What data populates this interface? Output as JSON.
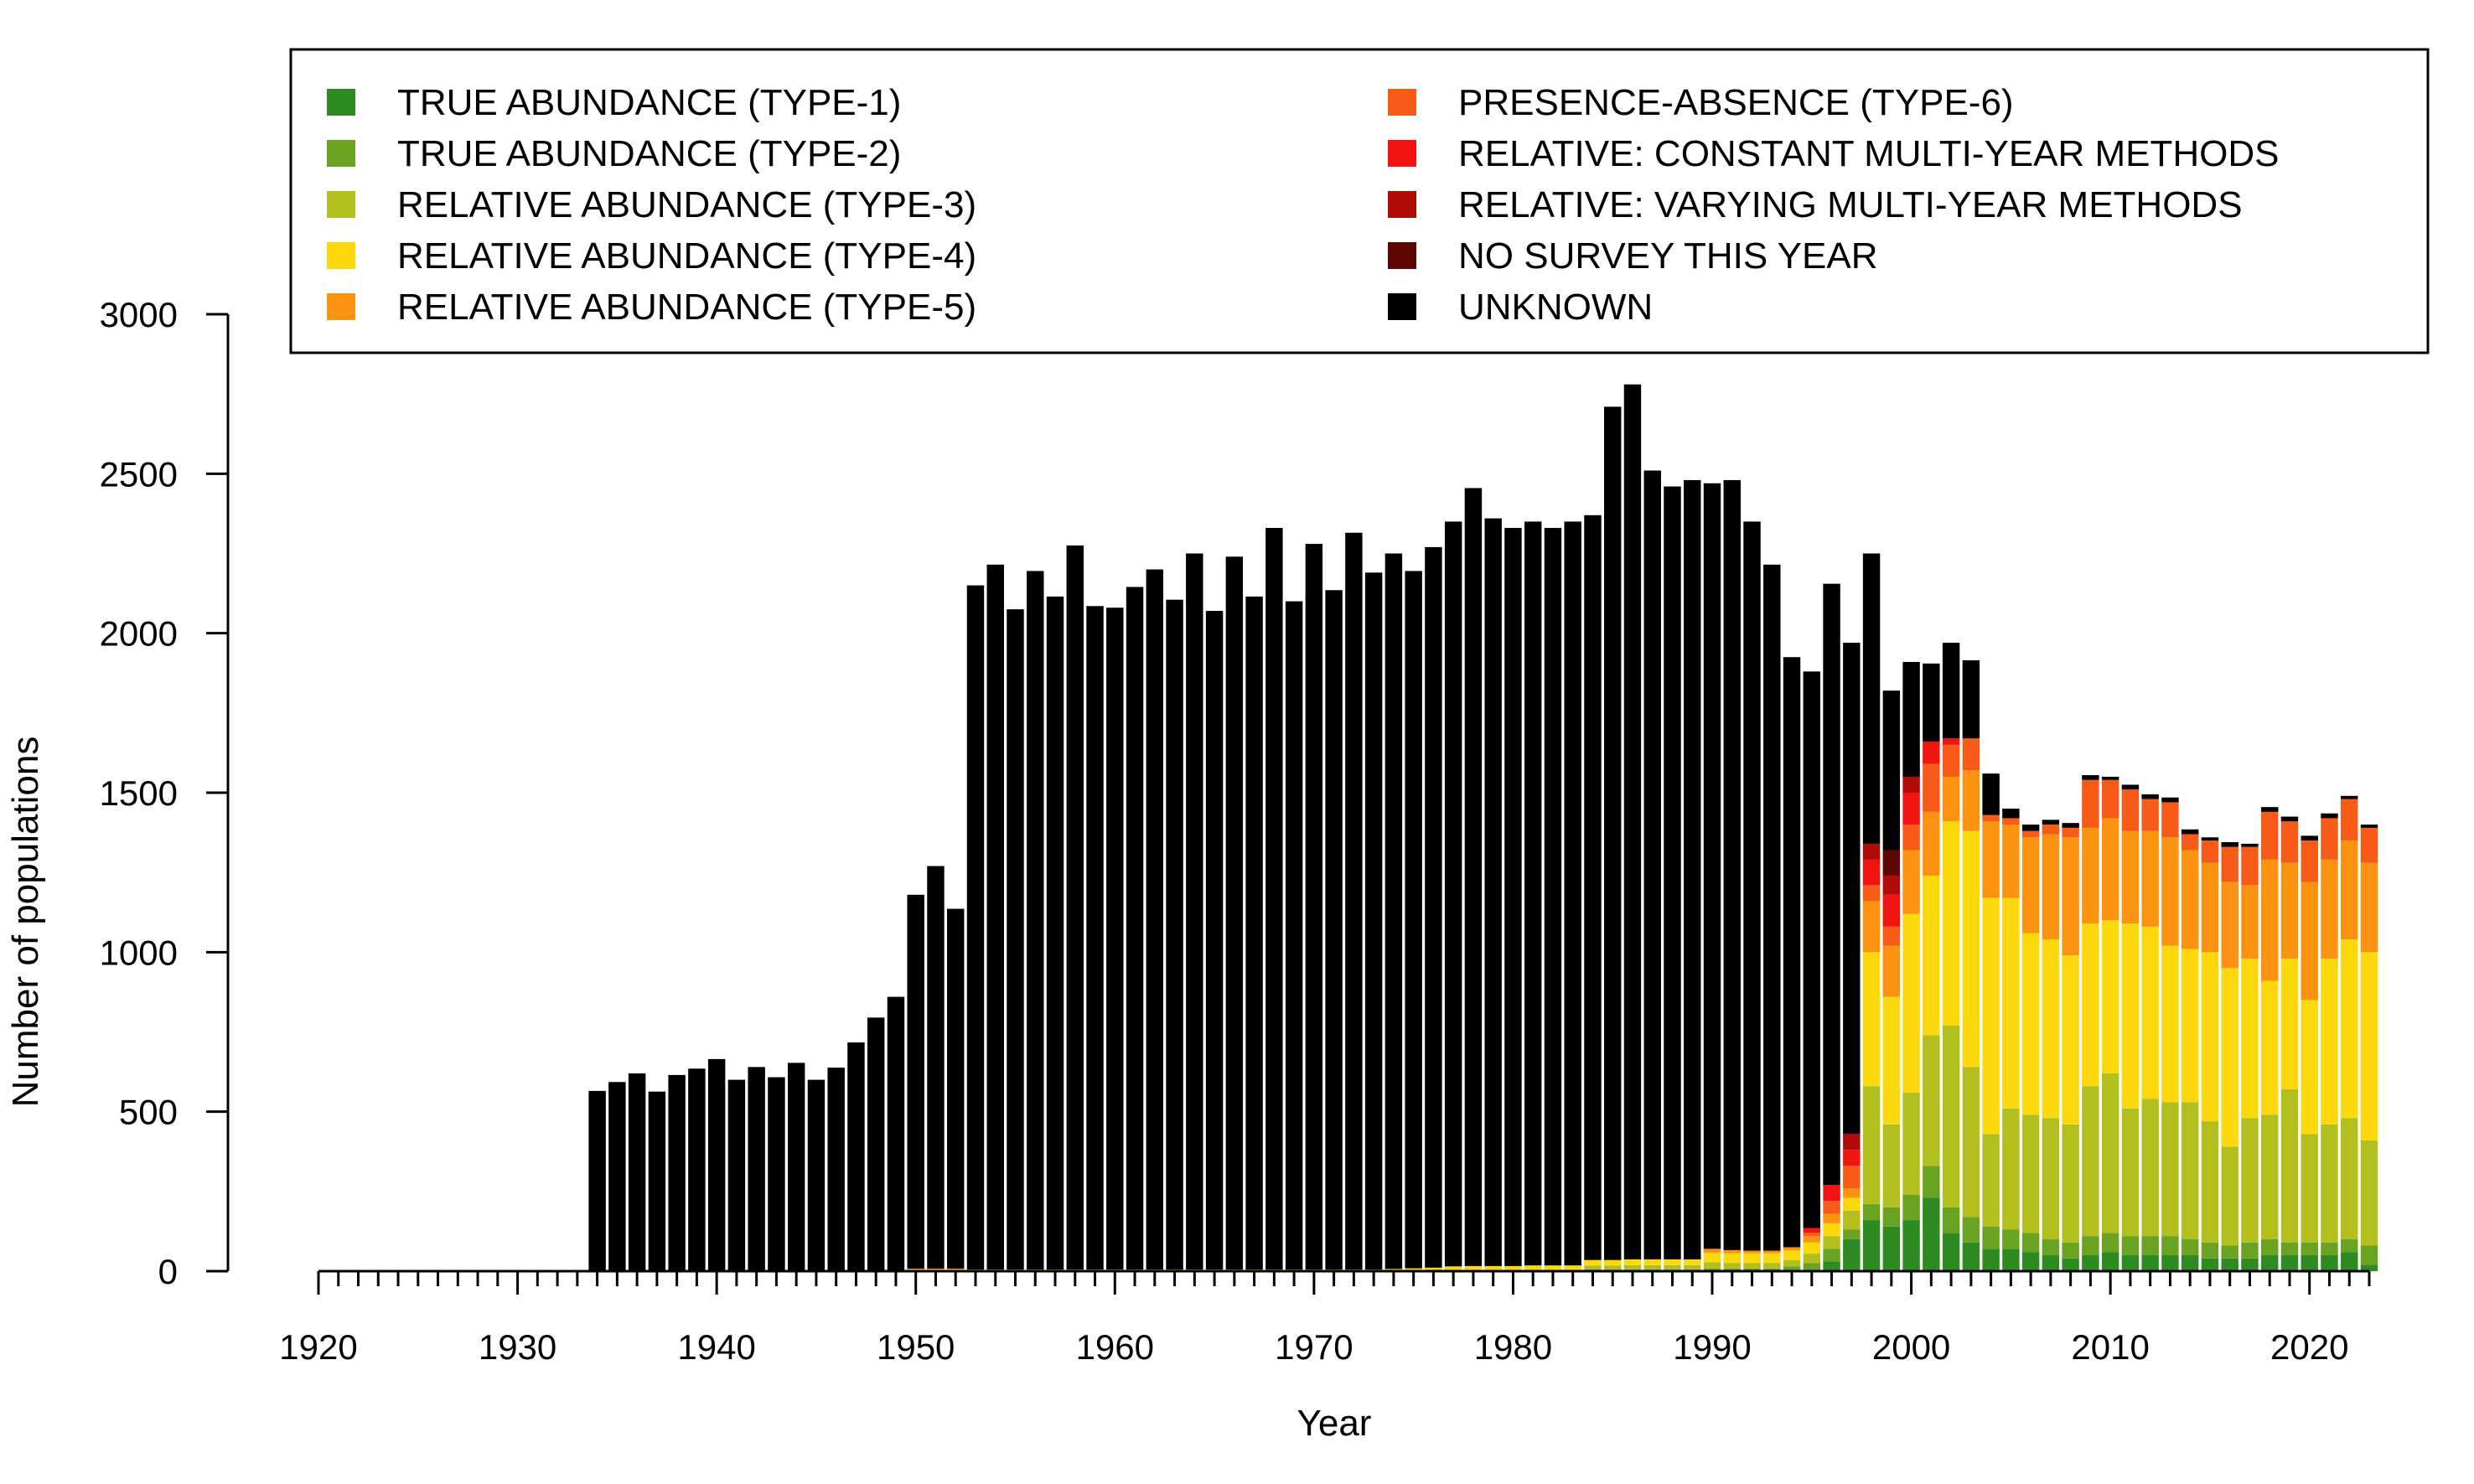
{
  "chart_data": {
    "type": "bar",
    "stacked": true,
    "title": "",
    "xlabel": "Year",
    "ylabel": "Number of populations",
    "xlim": [
      1920,
      2023
    ],
    "ylim": [
      0,
      3000
    ],
    "x_ticks": [
      1920,
      1930,
      1940,
      1950,
      1960,
      1970,
      1980,
      1990,
      2000,
      2010,
      2020
    ],
    "y_ticks": [
      0,
      500,
      1000,
      1500,
      2000,
      2500,
      3000
    ],
    "grid": false,
    "legend_position": "top",
    "series": [
      {
        "key": "t1",
        "name": "TRUE ABUNDANCE (TYPE-1)",
        "color": "#2e8b22"
      },
      {
        "key": "t2",
        "name": "TRUE ABUNDANCE (TYPE-2)",
        "color": "#6aa322"
      },
      {
        "key": "t3",
        "name": "RELATIVE ABUNDANCE (TYPE-3)",
        "color": "#b3bf1c"
      },
      {
        "key": "t4",
        "name": "RELATIVE ABUNDANCE (TYPE-4)",
        "color": "#fdd80c"
      },
      {
        "key": "t5",
        "name": "RELATIVE ABUNDANCE (TYPE-5)",
        "color": "#fb9310"
      },
      {
        "key": "t6",
        "name": "PRESENCE-ABSENCE (TYPE-6)",
        "color": "#f85b18"
      },
      {
        "key": "rc",
        "name": "RELATIVE: CONSTANT MULTI-YEAR METHODS",
        "color": "#f21410"
      },
      {
        "key": "rv",
        "name": "RELATIVE: VARYING MULTI-YEAR METHODS",
        "color": "#b10b07"
      },
      {
        "key": "ns",
        "name": "NO SURVEY THIS YEAR",
        "color": "#5e0703"
      },
      {
        "key": "un",
        "name": "UNKNOWN",
        "color": "#000000"
      }
    ],
    "bars": [
      {
        "year": 1934,
        "t4": 0,
        "un": 565
      },
      {
        "year": 1935,
        "un": 593
      },
      {
        "year": 1936,
        "un": 620
      },
      {
        "year": 1937,
        "un": 563
      },
      {
        "year": 1938,
        "un": 615
      },
      {
        "year": 1939,
        "un": 635
      },
      {
        "year": 1940,
        "un": 665
      },
      {
        "year": 1941,
        "un": 600
      },
      {
        "year": 1942,
        "un": 640
      },
      {
        "year": 1943,
        "un": 608
      },
      {
        "year": 1944,
        "un": 653
      },
      {
        "year": 1945,
        "un": 600
      },
      {
        "year": 1946,
        "un": 638
      },
      {
        "year": 1947,
        "un": 717
      },
      {
        "year": 1948,
        "un": 795
      },
      {
        "year": 1949,
        "un": 860
      },
      {
        "year": 1950,
        "t4": 5,
        "t5": 3,
        "un": 1172
      },
      {
        "year": 1951,
        "t4": 5,
        "t5": 3,
        "un": 1262
      },
      {
        "year": 1952,
        "t4": 5,
        "t5": 3,
        "un": 1128
      },
      {
        "year": 1953,
        "t4": 5,
        "un": 2145
      },
      {
        "year": 1954,
        "t4": 5,
        "un": 2210
      },
      {
        "year": 1955,
        "t4": 5,
        "un": 2070
      },
      {
        "year": 1956,
        "t4": 5,
        "un": 2190
      },
      {
        "year": 1957,
        "t4": 5,
        "un": 2110
      },
      {
        "year": 1958,
        "t4": 5,
        "un": 2270
      },
      {
        "year": 1959,
        "t4": 5,
        "un": 2080
      },
      {
        "year": 1960,
        "t4": 5,
        "un": 2075
      },
      {
        "year": 1961,
        "t4": 5,
        "un": 2140
      },
      {
        "year": 1962,
        "t4": 5,
        "un": 2195
      },
      {
        "year": 1963,
        "t4": 5,
        "un": 2100
      },
      {
        "year": 1964,
        "t4": 5,
        "un": 2245
      },
      {
        "year": 1965,
        "t4": 5,
        "un": 2065
      },
      {
        "year": 1966,
        "t4": 5,
        "un": 2235
      },
      {
        "year": 1967,
        "t4": 5,
        "un": 2110
      },
      {
        "year": 1968,
        "t4": 5,
        "un": 2325
      },
      {
        "year": 1969,
        "t4": 5,
        "un": 2095
      },
      {
        "year": 1970,
        "t4": 5,
        "un": 2275
      },
      {
        "year": 1971,
        "t4": 5,
        "un": 2130
      },
      {
        "year": 1972,
        "t4": 5,
        "un": 2310
      },
      {
        "year": 1973,
        "t4": 5,
        "un": 2185
      },
      {
        "year": 1974,
        "t3": 2,
        "t4": 5,
        "un": 2243
      },
      {
        "year": 1975,
        "t3": 3,
        "t4": 6,
        "un": 2186
      },
      {
        "year": 1976,
        "t3": 3,
        "t4": 8,
        "un": 2259
      },
      {
        "year": 1977,
        "t3": 3,
        "t4": 12,
        "un": 2335
      },
      {
        "year": 1978,
        "t3": 4,
        "t4": 12,
        "un": 2439
      },
      {
        "year": 1979,
        "t3": 4,
        "t4": 12,
        "un": 2344
      },
      {
        "year": 1980,
        "t3": 4,
        "t4": 12,
        "un": 2314
      },
      {
        "year": 1981,
        "t3": 4,
        "t4": 14,
        "un": 2332
      },
      {
        "year": 1982,
        "t3": 4,
        "t4": 14,
        "un": 2312
      },
      {
        "year": 1983,
        "t3": 4,
        "t4": 14,
        "un": 2332
      },
      {
        "year": 1984,
        "t2": 5,
        "t3": 12,
        "t4": 18,
        "un": 2335
      },
      {
        "year": 1985,
        "t2": 5,
        "t3": 12,
        "t4": 18,
        "un": 2675
      },
      {
        "year": 1986,
        "t2": 5,
        "t3": 14,
        "t4": 18,
        "un": 2743
      },
      {
        "year": 1987,
        "t2": 5,
        "t3": 14,
        "t4": 18,
        "un": 2473
      },
      {
        "year": 1988,
        "t2": 5,
        "t3": 14,
        "t4": 18,
        "un": 2423
      },
      {
        "year": 1989,
        "t2": 5,
        "t3": 14,
        "t4": 18,
        "un": 2443
      },
      {
        "year": 1990,
        "t2": 8,
        "t3": 20,
        "t4": 30,
        "t5": 12,
        "un": 2400
      },
      {
        "year": 1991,
        "t2": 8,
        "t3": 18,
        "t4": 30,
        "t5": 10,
        "un": 2414
      },
      {
        "year": 1992,
        "t2": 8,
        "t3": 18,
        "t4": 30,
        "t5": 8,
        "un": 2286
      },
      {
        "year": 1993,
        "t2": 8,
        "t3": 18,
        "t4": 30,
        "t5": 8,
        "un": 2151
      },
      {
        "year": 1994,
        "t1": 5,
        "t2": 10,
        "t3": 20,
        "t4": 30,
        "t5": 10,
        "un": 1850
      },
      {
        "year": 1995,
        "t1": 5,
        "t2": 20,
        "t3": 30,
        "t4": 35,
        "t5": 20,
        "t6": 10,
        "rc": 15,
        "un": 1745
      },
      {
        "year": 1996,
        "t1": 30,
        "t2": 40,
        "t3": 40,
        "t4": 40,
        "t5": 30,
        "t6": 40,
        "rc": 50,
        "un": 1885
      },
      {
        "year": 1997,
        "t1": 100,
        "t2": 30,
        "t3": 60,
        "t4": 40,
        "t5": 30,
        "t6": 70,
        "rc": 50,
        "rv": 50,
        "un": 1540
      },
      {
        "year": 1998,
        "t1": 160,
        "t2": 50,
        "t3": 370,
        "t4": 420,
        "t5": 160,
        "t6": 50,
        "rc": 80,
        "rv": 50,
        "un": 910
      },
      {
        "year": 1999,
        "t1": 140,
        "t2": 60,
        "t3": 260,
        "t4": 400,
        "t5": 160,
        "t6": 60,
        "rc": 100,
        "rv": 60,
        "ns": 80,
        "un": 500
      },
      {
        "year": 2000,
        "t1": 160,
        "t2": 80,
        "t3": 320,
        "t4": 560,
        "t5": 200,
        "t6": 80,
        "rc": 100,
        "rv": 50,
        "un": 360
      },
      {
        "year": 2001,
        "t1": 230,
        "t2": 100,
        "t3": 410,
        "t4": 500,
        "t5": 200,
        "t6": 150,
        "rc": 70,
        "un": 245
      },
      {
        "year": 2002,
        "t1": 120,
        "t2": 80,
        "t3": 570,
        "t4": 640,
        "t5": 140,
        "t6": 100,
        "rc": 20,
        "un": 300
      },
      {
        "year": 2003,
        "t1": 90,
        "t2": 80,
        "t3": 470,
        "t4": 740,
        "t5": 190,
        "t6": 100,
        "un": 245
      },
      {
        "year": 2004,
        "t1": 70,
        "t2": 70,
        "t3": 290,
        "t4": 740,
        "t5": 240,
        "t6": 20,
        "un": 130
      },
      {
        "year": 2005,
        "t1": 70,
        "t2": 60,
        "t3": 380,
        "t4": 660,
        "t5": 230,
        "t6": 20,
        "un": 30
      },
      {
        "year": 2006,
        "t1": 60,
        "t2": 60,
        "t3": 370,
        "t4": 570,
        "t5": 300,
        "t6": 20,
        "un": 20
      },
      {
        "year": 2007,
        "t1": 50,
        "t2": 50,
        "t3": 380,
        "t4": 560,
        "t5": 330,
        "t6": 30,
        "un": 15
      },
      {
        "year": 2008,
        "t1": 40,
        "t2": 50,
        "t3": 370,
        "t4": 530,
        "t5": 370,
        "t6": 30,
        "un": 15
      },
      {
        "year": 2009,
        "t1": 50,
        "t2": 60,
        "t3": 470,
        "t4": 510,
        "t5": 300,
        "t6": 150,
        "un": 15
      },
      {
        "year": 2010,
        "t1": 60,
        "t2": 60,
        "t3": 500,
        "t4": 480,
        "t5": 320,
        "t6": 120,
        "un": 10
      },
      {
        "year": 2011,
        "t1": 50,
        "t2": 60,
        "t3": 400,
        "t4": 580,
        "t5": 290,
        "t6": 130,
        "un": 15
      },
      {
        "year": 2012,
        "t1": 50,
        "t2": 60,
        "t3": 430,
        "t4": 540,
        "t5": 300,
        "t6": 100,
        "un": 15
      },
      {
        "year": 2013,
        "t1": 50,
        "t2": 60,
        "t3": 420,
        "t4": 490,
        "t5": 340,
        "t6": 110,
        "un": 15
      },
      {
        "year": 2014,
        "t1": 50,
        "t2": 50,
        "t3": 430,
        "t4": 480,
        "t5": 310,
        "t6": 50,
        "un": 15
      },
      {
        "year": 2015,
        "t1": 40,
        "t2": 50,
        "t3": 380,
        "t4": 530,
        "t5": 280,
        "t6": 70,
        "un": 10
      },
      {
        "year": 2016,
        "t1": 40,
        "t2": 40,
        "t3": 310,
        "t4": 560,
        "t5": 270,
        "t6": 110,
        "un": 15
      },
      {
        "year": 2017,
        "t1": 40,
        "t2": 50,
        "t3": 390,
        "t4": 500,
        "t5": 230,
        "t6": 120,
        "un": 10
      },
      {
        "year": 2018,
        "t1": 50,
        "t2": 50,
        "t3": 390,
        "t4": 420,
        "t5": 380,
        "t6": 150,
        "un": 15
      },
      {
        "year": 2019,
        "t1": 50,
        "t2": 40,
        "t3": 480,
        "t4": 410,
        "t5": 300,
        "t6": 130,
        "un": 15
      },
      {
        "year": 2020,
        "t1": 50,
        "t2": 40,
        "t3": 340,
        "t4": 420,
        "t5": 370,
        "t6": 130,
        "un": 15
      },
      {
        "year": 2021,
        "t1": 50,
        "t2": 40,
        "t3": 370,
        "t4": 520,
        "t5": 310,
        "t6": 130,
        "un": 15
      },
      {
        "year": 2022,
        "t1": 60,
        "t2": 40,
        "t3": 380,
        "t4": 560,
        "t5": 310,
        "t6": 130,
        "un": 10
      },
      {
        "year": 2023,
        "t1": 20,
        "t2": 60,
        "t3": 330,
        "t4": 590,
        "t5": 280,
        "t6": 110,
        "un": 10
      }
    ]
  }
}
